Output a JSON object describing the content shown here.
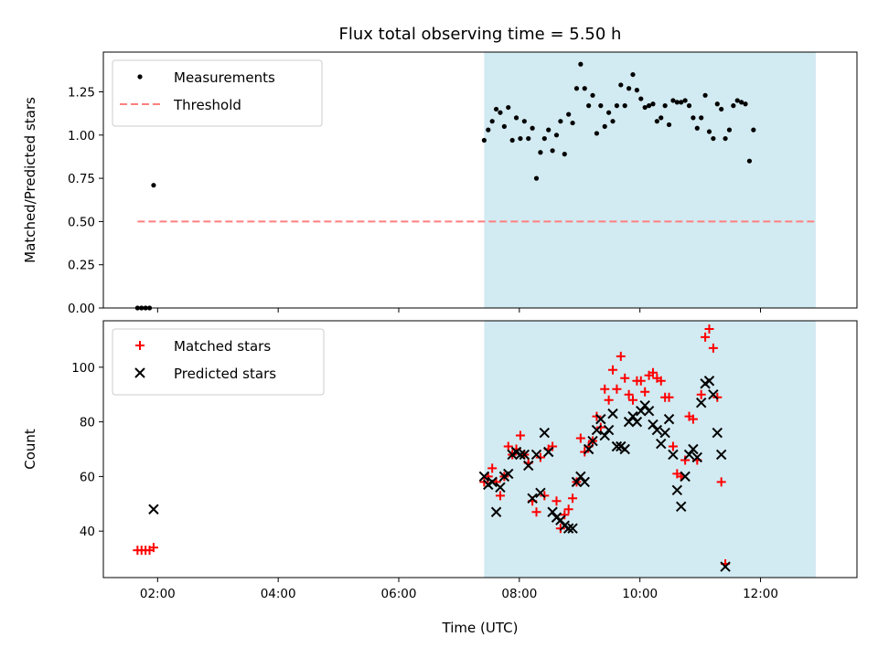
{
  "chart_data": {
    "title": "Flux total observing time = 5.50 h",
    "xlabel": "Time (UTC)",
    "x_unit": "hours UTC",
    "x_ticks": [
      "02:00",
      "04:00",
      "06:00",
      "08:00",
      "10:00",
      "12:00"
    ],
    "shaded_interval": {
      "start": "07:25",
      "end": "12:55",
      "color": "#add8e6"
    },
    "panels": [
      {
        "type": "scatter",
        "ylabel": "Matched/Predicted stars",
        "ylim": [
          0,
          1.48
        ],
        "y_ticks": [
          "0.00",
          "0.25",
          "0.50",
          "0.75",
          "1.00",
          "1.25"
        ],
        "legend": {
          "placement": "top-left",
          "entries": [
            "Measurements",
            "Threshold"
          ]
        },
        "threshold": {
          "name": "Threshold",
          "value": 0.5,
          "x_range": [
            "01:40",
            "12:55"
          ],
          "color": "#ff7f7f",
          "style": "dashed"
        },
        "series": [
          {
            "name": "Measurements",
            "marker": "dot",
            "color": "#000000",
            "points": [
              [
                "01:40",
                0.0
              ],
              [
                "01:44",
                0.0
              ],
              [
                "01:48",
                0.0
              ],
              [
                "01:52",
                0.0
              ],
              [
                "01:56",
                0.71
              ],
              [
                "07:25",
                0.97
              ],
              [
                "07:29",
                1.03
              ],
              [
                "07:33",
                1.08
              ],
              [
                "07:37",
                1.15
              ],
              [
                "07:41",
                1.13
              ],
              [
                "07:45",
                1.05
              ],
              [
                "07:49",
                1.16
              ],
              [
                "07:53",
                0.97
              ],
              [
                "07:57",
                1.1
              ],
              [
                "08:01",
                0.98
              ],
              [
                "08:05",
                1.08
              ],
              [
                "08:09",
                0.98
              ],
              [
                "08:13",
                1.04
              ],
              [
                "08:17",
                0.75
              ],
              [
                "08:21",
                0.9
              ],
              [
                "08:25",
                0.98
              ],
              [
                "08:29",
                1.03
              ],
              [
                "08:33",
                0.91
              ],
              [
                "08:37",
                1.0
              ],
              [
                "08:41",
                1.08
              ],
              [
                "08:45",
                0.89
              ],
              [
                "08:49",
                1.12
              ],
              [
                "08:53",
                1.07
              ],
              [
                "08:57",
                1.27
              ],
              [
                "09:01",
                1.41
              ],
              [
                "09:05",
                1.27
              ],
              [
                "09:09",
                1.17
              ],
              [
                "09:13",
                1.23
              ],
              [
                "09:17",
                1.01
              ],
              [
                "09:21",
                1.17
              ],
              [
                "09:25",
                1.05
              ],
              [
                "09:29",
                1.13
              ],
              [
                "09:33",
                1.08
              ],
              [
                "09:37",
                1.17
              ],
              [
                "09:41",
                1.29
              ],
              [
                "09:45",
                1.17
              ],
              [
                "09:49",
                1.27
              ],
              [
                "09:53",
                1.35
              ],
              [
                "09:57",
                1.26
              ],
              [
                "10:01",
                1.21
              ],
              [
                "10:05",
                1.16
              ],
              [
                "10:09",
                1.17
              ],
              [
                "10:13",
                1.18
              ],
              [
                "10:17",
                1.08
              ],
              [
                "10:21",
                1.1
              ],
              [
                "10:25",
                1.17
              ],
              [
                "10:29",
                1.06
              ],
              [
                "10:33",
                1.2
              ],
              [
                "10:37",
                1.19
              ],
              [
                "10:41",
                1.19
              ],
              [
                "10:45",
                1.2
              ],
              [
                "10:49",
                1.17
              ],
              [
                "10:53",
                1.1
              ],
              [
                "10:57",
                1.04
              ],
              [
                "11:01",
                1.1
              ],
              [
                "11:05",
                1.23
              ],
              [
                "11:09",
                1.02
              ],
              [
                "11:13",
                0.98
              ],
              [
                "11:17",
                1.18
              ],
              [
                "11:21",
                1.15
              ],
              [
                "11:25",
                0.98
              ],
              [
                "11:29",
                1.03
              ],
              [
                "11:33",
                1.17
              ],
              [
                "11:37",
                1.2
              ],
              [
                "11:41",
                1.19
              ],
              [
                "11:45",
                1.18
              ],
              [
                "11:49",
                0.85
              ],
              [
                "11:53",
                1.03
              ]
            ]
          }
        ]
      },
      {
        "type": "scatter",
        "ylabel": "Count",
        "ylim": [
          23,
          117
        ],
        "y_ticks": [
          "40",
          "60",
          "80",
          "100"
        ],
        "legend": {
          "placement": "top-left",
          "entries": [
            "Matched stars",
            "Predicted stars"
          ]
        },
        "series": [
          {
            "name": "Matched stars",
            "marker": "plus",
            "color": "#ff0000",
            "points": [
              [
                "01:40",
                33
              ],
              [
                "01:44",
                33
              ],
              [
                "01:48",
                33
              ],
              [
                "01:52",
                33
              ],
              [
                "01:56",
                34
              ],
              [
                "07:25",
                58
              ],
              [
                "07:29",
                60
              ],
              [
                "07:33",
                63
              ],
              [
                "07:37",
                58
              ],
              [
                "07:41",
                53
              ],
              [
                "07:45",
                60
              ],
              [
                "07:49",
                71
              ],
              [
                "07:53",
                68
              ],
              [
                "07:57",
                70
              ],
              [
                "08:01",
                75
              ],
              [
                "08:05",
                68
              ],
              [
                "08:09",
                65
              ],
              [
                "08:13",
                51
              ],
              [
                "08:17",
                47
              ],
              [
                "08:21",
                67
              ],
              [
                "08:25",
                53
              ],
              [
                "08:29",
                70
              ],
              [
                "08:33",
                71
              ],
              [
                "08:37",
                51
              ],
              [
                "08:41",
                41
              ],
              [
                "08:45",
                46
              ],
              [
                "08:49",
                48
              ],
              [
                "08:53",
                52
              ],
              [
                "08:57",
                58
              ],
              [
                "09:01",
                74
              ],
              [
                "09:05",
                69
              ],
              [
                "09:09",
                71
              ],
              [
                "09:13",
                73
              ],
              [
                "09:17",
                82
              ],
              [
                "09:21",
                78
              ],
              [
                "09:25",
                92
              ],
              [
                "09:29",
                88
              ],
              [
                "09:33",
                99
              ],
              [
                "09:37",
                92
              ],
              [
                "09:41",
                104
              ],
              [
                "09:45",
                96
              ],
              [
                "09:49",
                90
              ],
              [
                "09:53",
                88
              ],
              [
                "09:57",
                95
              ],
              [
                "10:01",
                95
              ],
              [
                "10:05",
                91
              ],
              [
                "10:09",
                97
              ],
              [
                "10:13",
                98
              ],
              [
                "10:17",
                96
              ],
              [
                "10:21",
                95
              ],
              [
                "10:25",
                89
              ],
              [
                "10:29",
                89
              ],
              [
                "10:33",
                71
              ],
              [
                "10:37",
                61
              ],
              [
                "10:41",
                60
              ],
              [
                "10:45",
                66
              ],
              [
                "10:49",
                82
              ],
              [
                "10:53",
                81
              ],
              [
                "10:57",
                66
              ],
              [
                "11:01",
                90
              ],
              [
                "11:05",
                111
              ],
              [
                "11:09",
                114
              ],
              [
                "11:13",
                107
              ],
              [
                "11:17",
                89
              ],
              [
                "11:21",
                58
              ],
              [
                "11:25",
                28
              ]
            ]
          },
          {
            "name": "Predicted stars",
            "marker": "x",
            "color": "#000000",
            "points": [
              [
                "01:56",
                48
              ],
              [
                "07:25",
                60
              ],
              [
                "07:29",
                57
              ],
              [
                "07:33",
                58
              ],
              [
                "07:37",
                47
              ],
              [
                "07:41",
                56
              ],
              [
                "07:45",
                60
              ],
              [
                "07:49",
                61
              ],
              [
                "07:53",
                68
              ],
              [
                "07:57",
                69
              ],
              [
                "08:01",
                68
              ],
              [
                "08:05",
                68
              ],
              [
                "08:09",
                64
              ],
              [
                "08:13",
                52
              ],
              [
                "08:17",
                68
              ],
              [
                "08:21",
                54
              ],
              [
                "08:25",
                76
              ],
              [
                "08:29",
                69
              ],
              [
                "08:33",
                47
              ],
              [
                "08:37",
                45
              ],
              [
                "08:41",
                44
              ],
              [
                "08:45",
                42
              ],
              [
                "08:49",
                41
              ],
              [
                "08:53",
                41
              ],
              [
                "08:57",
                58
              ],
              [
                "09:01",
                60
              ],
              [
                "09:05",
                58
              ],
              [
                "09:09",
                70
              ],
              [
                "09:13",
                73
              ],
              [
                "09:17",
                77
              ],
              [
                "09:21",
                81
              ],
              [
                "09:25",
                75
              ],
              [
                "09:29",
                77
              ],
              [
                "09:33",
                83
              ],
              [
                "09:37",
                71
              ],
              [
                "09:41",
                71
              ],
              [
                "09:45",
                70
              ],
              [
                "09:49",
                80
              ],
              [
                "09:53",
                82
              ],
              [
                "09:57",
                80
              ],
              [
                "10:01",
                84
              ],
              [
                "10:05",
                86
              ],
              [
                "10:09",
                84
              ],
              [
                "10:13",
                79
              ],
              [
                "10:17",
                77
              ],
              [
                "10:21",
                72
              ],
              [
                "10:25",
                76
              ],
              [
                "10:29",
                81
              ],
              [
                "10:33",
                68
              ],
              [
                "10:37",
                55
              ],
              [
                "10:41",
                49
              ],
              [
                "10:45",
                60
              ],
              [
                "10:49",
                68
              ],
              [
                "10:53",
                70
              ],
              [
                "10:57",
                67
              ],
              [
                "11:01",
                87
              ],
              [
                "11:05",
                94
              ],
              [
                "11:09",
                95
              ],
              [
                "11:13",
                90
              ],
              [
                "11:17",
                76
              ],
              [
                "11:21",
                68
              ],
              [
                "11:25",
                27
              ]
            ]
          }
        ]
      }
    ]
  }
}
